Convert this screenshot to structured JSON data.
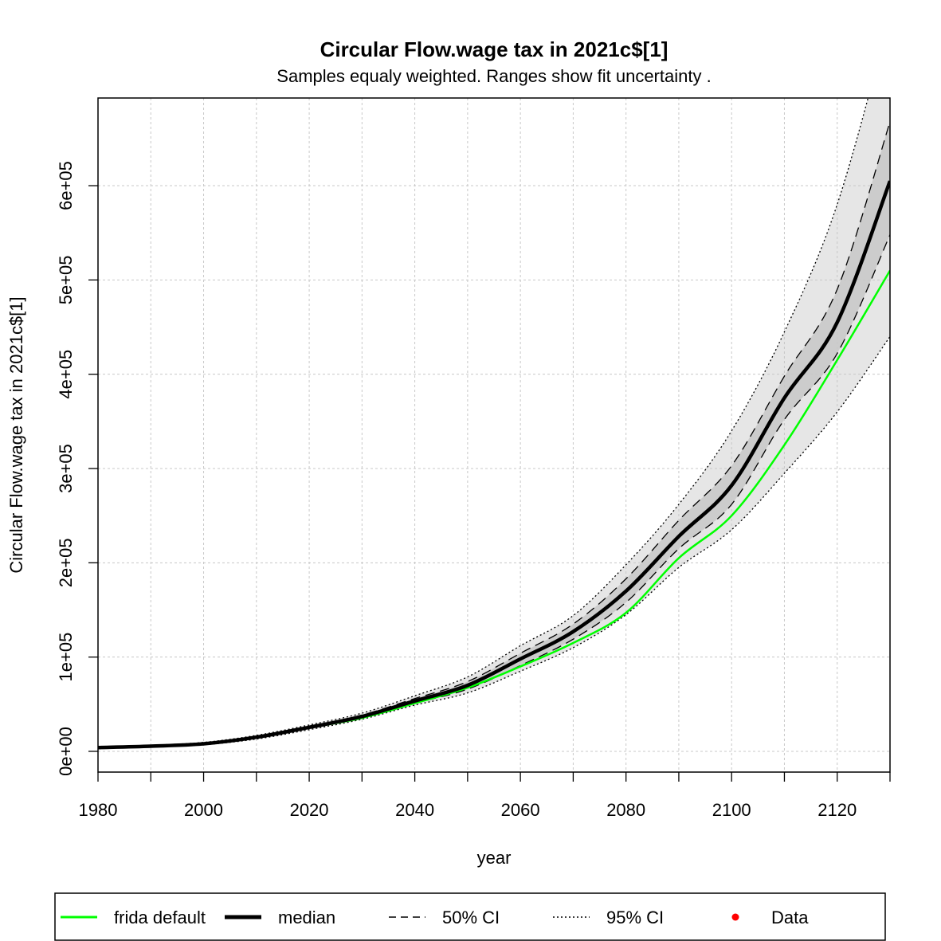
{
  "chart_data": {
    "type": "line",
    "title": "Circular Flow.wage tax in 2021c$[1]",
    "subtitle": "Samples equaly weighted. Ranges show  fit uncertainty .",
    "xlabel": "year",
    "ylabel": "Circular Flow.wage tax in 2021c$[1]",
    "xlim": [
      1980,
      2130
    ],
    "ylim": [
      -22000,
      693000
    ],
    "x_ticks": [
      1980,
      2000,
      2020,
      2040,
      2060,
      2080,
      2100,
      2120
    ],
    "x_tick_labels": [
      "1980",
      "2000",
      "2020",
      "2040",
      "2060",
      "2080",
      "2100",
      "2120"
    ],
    "y_ticks": [
      0,
      100000,
      200000,
      300000,
      400000,
      500000,
      600000
    ],
    "y_tick_labels": [
      "0e+00",
      "1e+05",
      "2e+05",
      "3e+05",
      "4e+05",
      "5e+05",
      "6e+05"
    ],
    "x_grid": [
      1980,
      1990,
      2000,
      2010,
      2020,
      2030,
      2040,
      2050,
      2060,
      2070,
      2080,
      2090,
      2100,
      2110,
      2120,
      2130
    ],
    "grid": true,
    "legend_position": "bottom",
    "x": [
      1980,
      1990,
      2000,
      2010,
      2020,
      2030,
      2040,
      2050,
      2060,
      2070,
      2080,
      2090,
      2100,
      2110,
      2120,
      2130
    ],
    "series": [
      {
        "name": "frida default",
        "role": "default",
        "color": "#00ff00",
        "values": [
          4000,
          5500,
          8000,
          15000,
          25000,
          35500,
          51000,
          67500,
          90000,
          115000,
          147000,
          205000,
          250000,
          325000,
          415000,
          510000
        ]
      },
      {
        "name": "median",
        "role": "median",
        "color": "#000000",
        "values": [
          4000,
          5500,
          8000,
          15000,
          25500,
          37000,
          53500,
          70000,
          98000,
          127000,
          170000,
          228000,
          282000,
          375000,
          455000,
          605000
        ]
      },
      {
        "name": "50% CI upper",
        "role": "ci50",
        "color": "#000000",
        "values": [
          4500,
          6000,
          8500,
          16000,
          26500,
          38500,
          56000,
          74000,
          104000,
          135000,
          183000,
          245000,
          303000,
          398000,
          490000,
          668000
        ]
      },
      {
        "name": "50% CI lower",
        "role": "ci50",
        "color": "#000000",
        "values": [
          3500,
          5000,
          7500,
          14000,
          24500,
          35500,
          51000,
          66000,
          91000,
          119000,
          158000,
          215000,
          262000,
          352000,
          422000,
          548000
        ]
      },
      {
        "name": "95% CI upper",
        "role": "ci95",
        "color": "#000000",
        "values": [
          5000,
          6500,
          9500,
          17000,
          28000,
          40500,
          59000,
          79000,
          112000,
          144000,
          198000,
          262000,
          340000,
          445000,
          580000,
          780000
        ]
      },
      {
        "name": "95% CI lower",
        "role": "ci95",
        "color": "#000000",
        "values": [
          3000,
          4500,
          7000,
          13000,
          23000,
          34000,
          49000,
          62000,
          85000,
          110000,
          145000,
          195000,
          235000,
          295000,
          360000,
          440000
        ]
      }
    ],
    "band_colors": {
      "ci95": "#e6e6e6",
      "ci50": "#cccccc"
    },
    "legend": {
      "items": [
        {
          "label": "frida default",
          "style": "green-line"
        },
        {
          "label": "median",
          "style": "thick-line"
        },
        {
          "label": "50% CI",
          "style": "dashed-line"
        },
        {
          "label": "95% CI",
          "style": "dotted-line"
        },
        {
          "label": "Data",
          "style": "red-dot"
        }
      ]
    },
    "colors": {
      "data_point": "#ff0000",
      "grid": "#c8c8c8"
    }
  }
}
